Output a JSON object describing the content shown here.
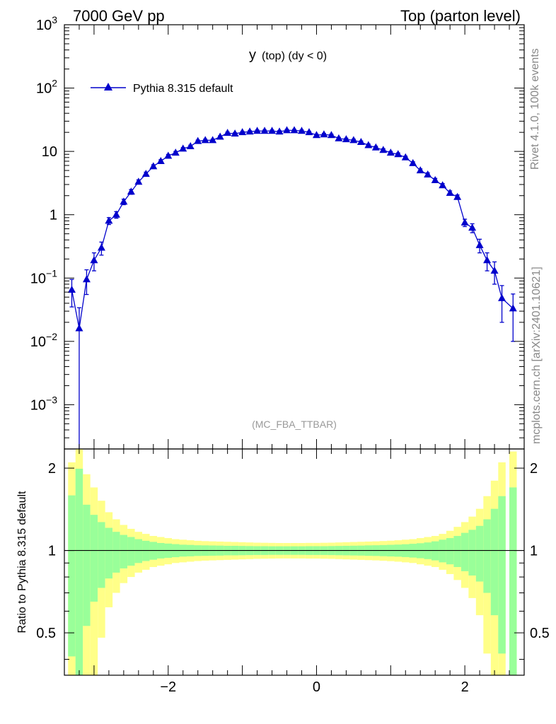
{
  "header": {
    "left": "7000 GeV pp",
    "right": "Top (parton level)"
  },
  "side_text": {
    "rivet": "Rivet 4.1.0,  100k events",
    "mcplots": "mcplots.cern.ch [arXiv:2401.10621]"
  },
  "colors": {
    "series": "#0000cc",
    "band_stat": "#99ff99",
    "band_tot": "#ffff88"
  },
  "chart_data": [
    {
      "type": "scatter",
      "title_main": "y",
      "title_sub": "(top) (dy < 0)",
      "watermark": "(MC_FBA_TTBAR)",
      "yscale": "log",
      "xlim": [
        -3.4,
        2.8
      ],
      "ylim": [
        0.0002,
        1000
      ],
      "ytick_labels": [
        {
          "base": "10",
          "exp": "3",
          "value": 1000
        },
        {
          "base": "10",
          "exp": "2",
          "value": 100
        },
        {
          "base": "10",
          "exp": "",
          "value": 10
        },
        {
          "base": "1",
          "exp": "",
          "value": 1
        },
        {
          "base": "10",
          "exp": "−1",
          "value": 0.1
        },
        {
          "base": "10",
          "exp": "−2",
          "value": 0.01
        },
        {
          "base": "10",
          "exp": "−3",
          "value": 0.001
        }
      ],
      "legend": {
        "label": "Pythia 8.315 default",
        "position": "top-left"
      },
      "series": [
        {
          "name": "Pythia 8.315 default",
          "x": [
            -3.3,
            -3.2,
            -3.1,
            -3.0,
            -2.9,
            -2.8,
            -2.7,
            -2.6,
            -2.5,
            -2.4,
            -2.3,
            -2.2,
            -2.1,
            -2.0,
            -1.9,
            -1.8,
            -1.7,
            -1.6,
            -1.5,
            -1.4,
            -1.3,
            -1.2,
            -1.1,
            -1.0,
            -0.9,
            -0.8,
            -0.7,
            -0.6,
            -0.5,
            -0.4,
            -0.3,
            -0.2,
            -0.1,
            0.0,
            0.1,
            0.2,
            0.3,
            0.4,
            0.5,
            0.6,
            0.7,
            0.8,
            0.9,
            1.0,
            1.1,
            1.2,
            1.3,
            1.4,
            1.5,
            1.6,
            1.7,
            1.8,
            1.9,
            2.0,
            2.1,
            2.2,
            2.3,
            2.4,
            2.5,
            2.65
          ],
          "y": [
            0.065,
            0.016,
            0.095,
            0.19,
            0.3,
            0.8,
            1.0,
            1.6,
            2.3,
            3.3,
            4.4,
            5.8,
            7.0,
            8.5,
            9.5,
            11.0,
            12.0,
            14.5,
            15.0,
            15.0,
            17.0,
            19.5,
            19.0,
            20.0,
            20.5,
            21.0,
            21.0,
            21.0,
            20.5,
            21.5,
            21.5,
            21.0,
            20.0,
            18.0,
            18.5,
            18.0,
            16.0,
            15.5,
            15.0,
            14.0,
            12.5,
            11.5,
            10.5,
            9.5,
            9.0,
            8.0,
            6.5,
            5.0,
            4.3,
            3.5,
            2.9,
            2.2,
            1.9,
            0.75,
            0.62,
            0.33,
            0.19,
            0.13,
            0.048,
            0.033
          ],
          "err_lo": [
            0.03,
            0.016,
            0.04,
            0.06,
            0.07,
            0.1,
            0.12,
            0.16,
            0.2,
            0.25,
            0.3,
            0.35,
            0.4,
            0.45,
            0.5,
            0.5,
            0.55,
            0.6,
            0.6,
            0.6,
            0.65,
            0.7,
            0.7,
            0.7,
            0.7,
            0.75,
            0.75,
            0.75,
            0.75,
            0.75,
            0.75,
            0.75,
            0.7,
            0.7,
            0.7,
            0.7,
            0.65,
            0.65,
            0.6,
            0.6,
            0.55,
            0.55,
            0.5,
            0.5,
            0.45,
            0.4,
            0.35,
            0.3,
            0.28,
            0.25,
            0.2,
            0.18,
            0.15,
            0.1,
            0.1,
            0.08,
            0.06,
            0.05,
            0.028,
            0.023
          ],
          "err_hi": [
            0.03,
            0.018,
            0.04,
            0.06,
            0.07,
            0.1,
            0.12,
            0.16,
            0.2,
            0.25,
            0.3,
            0.35,
            0.4,
            0.45,
            0.5,
            0.5,
            0.55,
            0.6,
            0.6,
            0.6,
            0.65,
            0.7,
            0.7,
            0.7,
            0.7,
            0.75,
            0.75,
            0.75,
            0.75,
            0.75,
            0.75,
            0.75,
            0.7,
            0.7,
            0.7,
            0.7,
            0.65,
            0.65,
            0.6,
            0.6,
            0.55,
            0.55,
            0.5,
            0.5,
            0.45,
            0.4,
            0.35,
            0.3,
            0.28,
            0.25,
            0.2,
            0.18,
            0.15,
            0.1,
            0.1,
            0.08,
            0.06,
            0.05,
            0.028,
            0.023
          ]
        }
      ]
    },
    {
      "type": "area",
      "ylabel": "Ratio to Pythia 8.315 default",
      "xlim": [
        -3.4,
        2.8
      ],
      "ylim": [
        0.35,
        2.35
      ],
      "yscale": "log",
      "xtick_labels": [
        {
          "label": "−2",
          "value": -2
        },
        {
          "label": "0",
          "value": 0
        },
        {
          "label": "2",
          "value": 2
        }
      ],
      "ytick_labels": [
        {
          "label": "2",
          "value": 2
        },
        {
          "label": "1",
          "value": 1
        },
        {
          "label": "0.5",
          "value": 0.5
        }
      ],
      "reference_line": 1,
      "bands": {
        "x": [
          -3.3,
          -3.2,
          -3.1,
          -3.0,
          -2.9,
          -2.8,
          -2.7,
          -2.6,
          -2.5,
          -2.4,
          -2.3,
          -2.2,
          -2.1,
          -2.0,
          -1.9,
          -1.8,
          -1.7,
          -1.6,
          -1.5,
          -1.4,
          -1.3,
          -1.2,
          -1.1,
          -1.0,
          -0.9,
          -0.8,
          -0.7,
          -0.6,
          -0.5,
          -0.4,
          -0.3,
          -0.2,
          -0.1,
          0.0,
          0.1,
          0.2,
          0.3,
          0.4,
          0.5,
          0.6,
          0.7,
          0.8,
          0.9,
          1.0,
          1.1,
          1.2,
          1.3,
          1.4,
          1.5,
          1.6,
          1.7,
          1.8,
          1.9,
          2.0,
          2.1,
          2.2,
          2.3,
          2.4,
          2.5,
          2.65
        ],
        "stat": [
          0.59,
          0.99,
          0.47,
          0.35,
          0.27,
          0.21,
          0.17,
          0.14,
          0.12,
          0.1,
          0.085,
          0.075,
          0.065,
          0.06,
          0.055,
          0.05,
          0.048,
          0.045,
          0.044,
          0.043,
          0.042,
          0.04,
          0.04,
          0.039,
          0.038,
          0.037,
          0.037,
          0.036,
          0.036,
          0.036,
          0.036,
          0.036,
          0.037,
          0.037,
          0.037,
          0.038,
          0.039,
          0.04,
          0.041,
          0.042,
          0.044,
          0.045,
          0.047,
          0.049,
          0.051,
          0.054,
          0.058,
          0.063,
          0.07,
          0.08,
          0.095,
          0.11,
          0.13,
          0.16,
          0.19,
          0.23,
          0.3,
          0.42,
          0.58,
          0.7
        ],
        "total": [
          1.1,
          1.5,
          0.9,
          0.7,
          0.52,
          0.38,
          0.3,
          0.24,
          0.2,
          0.17,
          0.15,
          0.13,
          0.12,
          0.11,
          0.1,
          0.095,
          0.09,
          0.085,
          0.082,
          0.08,
          0.078,
          0.076,
          0.074,
          0.072,
          0.07,
          0.068,
          0.067,
          0.066,
          0.065,
          0.065,
          0.065,
          0.065,
          0.066,
          0.066,
          0.067,
          0.068,
          0.07,
          0.072,
          0.074,
          0.076,
          0.078,
          0.08,
          0.083,
          0.086,
          0.09,
          0.095,
          0.1,
          0.11,
          0.12,
          0.13,
          0.15,
          0.18,
          0.22,
          0.27,
          0.33,
          0.42,
          0.58,
          0.8,
          1.1,
          1.3
        ]
      }
    }
  ]
}
